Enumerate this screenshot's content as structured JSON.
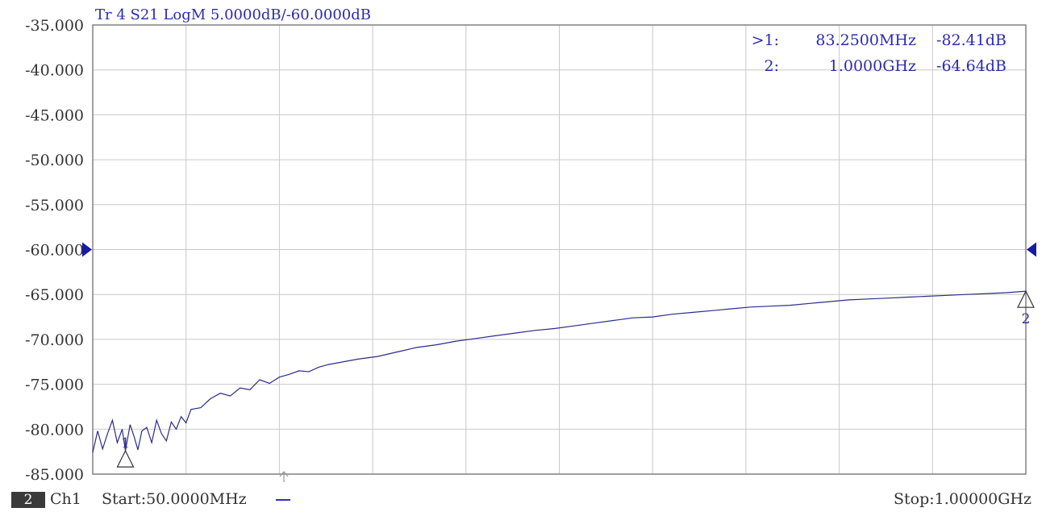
{
  "chart_data": {
    "type": "line",
    "trace_header": "Tr 4  S21 LogM 5.0000dB/-60.0000dB",
    "ylim": [
      -85,
      -35
    ],
    "y_ticks": [
      "-35.000",
      "-40.000",
      "-45.000",
      "-50.000",
      "-55.000",
      "-60.000",
      "-65.000",
      "-70.000",
      "-75.000",
      "-80.000",
      "-85.000"
    ],
    "xlim_mhz": [
      50,
      1000
    ],
    "reference_level": -60,
    "grid": true,
    "x_divisions": 10,
    "trace_color": "#2b2b8c",
    "series": [
      {
        "x_mhz": [
          50,
          55,
          60,
          65,
          70,
          75,
          80,
          83.25,
          88,
          92,
          96,
          100,
          105,
          110,
          115,
          120,
          125,
          130,
          135,
          140,
          145,
          150,
          160,
          170,
          180,
          190,
          200,
          210,
          220,
          230,
          240,
          250,
          260,
          270,
          280,
          290,
          300,
          320,
          340,
          360,
          380,
          400,
          420,
          440,
          460,
          480,
          500,
          520,
          540,
          560,
          580,
          600,
          620,
          640,
          660,
          680,
          700,
          720,
          740,
          760,
          780,
          800,
          820,
          840,
          860,
          880,
          900,
          920,
          940,
          960,
          980,
          1000
        ],
        "y_db": [
          -82.6,
          -80.2,
          -82.2,
          -80.5,
          -79.0,
          -81.5,
          -80.0,
          -82.41,
          -79.5,
          -80.8,
          -82.3,
          -80.2,
          -79.8,
          -81.5,
          -79.0,
          -80.5,
          -81.3,
          -79.2,
          -80.0,
          -78.6,
          -79.3,
          -77.8,
          -77.6,
          -76.6,
          -76.0,
          -76.3,
          -75.4,
          -75.6,
          -74.5,
          -74.9,
          -74.2,
          -73.9,
          -73.5,
          -73.6,
          -73.1,
          -72.8,
          -72.6,
          -72.2,
          -71.9,
          -71.4,
          -70.9,
          -70.6,
          -70.2,
          -69.9,
          -69.6,
          -69.3,
          -69.0,
          -68.8,
          -68.5,
          -68.2,
          -67.9,
          -67.6,
          -67.5,
          -67.2,
          -67.0,
          -66.8,
          -66.6,
          -66.4,
          -66.3,
          -66.2,
          -66.0,
          -65.8,
          -65.6,
          -65.5,
          -65.4,
          -65.3,
          -65.2,
          -65.1,
          -65.0,
          -64.9,
          -64.8,
          -64.64
        ]
      }
    ]
  },
  "markers": [
    {
      "label": "1",
      "active_symbol": ">",
      "list_label": ">1:",
      "freq": "83.2500MHz",
      "value": "-82.41dB",
      "x_mhz": 83.25,
      "y_db": -82.41
    },
    {
      "label": "2",
      "active_symbol": "",
      "list_label": "2:",
      "freq": "1.0000GHz",
      "value": "-64.64dB",
      "x_mhz": 1000,
      "y_db": -64.64
    }
  ],
  "footer": {
    "channel_number": "2",
    "channel_name": "Ch1",
    "start": "Start:50.0000MHz",
    "stop": "Stop:1.00000GHz"
  }
}
